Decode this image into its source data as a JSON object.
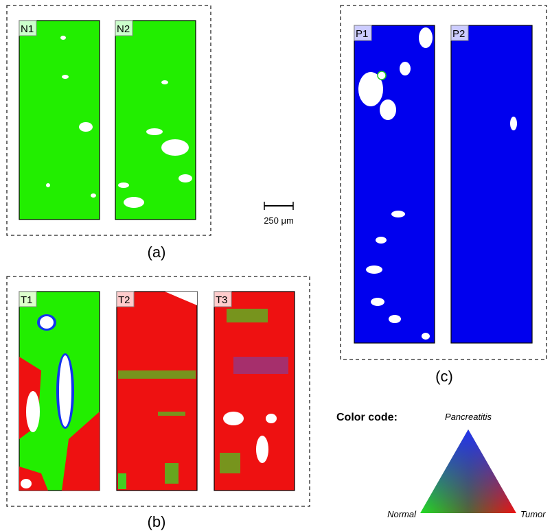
{
  "panels": [
    {
      "label": "(a)",
      "images": [
        "N1",
        "N2"
      ]
    },
    {
      "label": "(b)",
      "images": [
        "T1",
        "T2",
        "T3"
      ]
    },
    {
      "label": "(c)",
      "images": [
        "P1",
        "P2"
      ]
    }
  ],
  "scale_bar": "250 μm",
  "color_code": {
    "title": "Color code:",
    "top": "Pancreatitis",
    "left": "Normal",
    "right": "Tumor"
  }
}
